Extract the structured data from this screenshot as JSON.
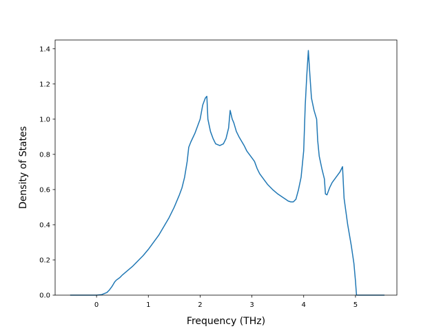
{
  "chart_data": {
    "type": "line",
    "title": "",
    "xlabel": "Frequency (THz)",
    "ylabel": "Density of States",
    "xlim": [
      -0.8,
      5.8
    ],
    "ylim": [
      0.0,
      1.45
    ],
    "xticks": [
      0,
      1,
      2,
      3,
      4,
      5
    ],
    "yticks": [
      0.0,
      0.2,
      0.4,
      0.6,
      0.8,
      1.0,
      1.2,
      1.4
    ],
    "xtick_labels": [
      "0",
      "1",
      "2",
      "3",
      "4",
      "5"
    ],
    "ytick_labels": [
      "0.0",
      "0.2",
      "0.4",
      "0.6",
      "0.8",
      "1.0",
      "1.2",
      "1.4"
    ],
    "grid": false,
    "series": [
      {
        "color": "#1f77b4",
        "points": [
          [
            -0.5,
            0.0
          ],
          [
            0.0,
            0.0
          ],
          [
            0.1,
            0.003
          ],
          [
            0.2,
            0.015
          ],
          [
            0.25,
            0.03
          ],
          [
            0.3,
            0.05
          ],
          [
            0.35,
            0.075
          ],
          [
            0.38,
            0.085
          ],
          [
            0.45,
            0.1
          ],
          [
            0.5,
            0.115
          ],
          [
            0.6,
            0.14
          ],
          [
            0.7,
            0.165
          ],
          [
            0.8,
            0.195
          ],
          [
            0.9,
            0.225
          ],
          [
            1.0,
            0.26
          ],
          [
            1.1,
            0.3
          ],
          [
            1.2,
            0.34
          ],
          [
            1.3,
            0.39
          ],
          [
            1.4,
            0.44
          ],
          [
            1.5,
            0.5
          ],
          [
            1.6,
            0.57
          ],
          [
            1.65,
            0.61
          ],
          [
            1.7,
            0.67
          ],
          [
            1.75,
            0.76
          ],
          [
            1.78,
            0.84
          ],
          [
            1.82,
            0.87
          ],
          [
            1.9,
            0.92
          ],
          [
            2.0,
            1.0
          ],
          [
            2.05,
            1.08
          ],
          [
            2.1,
            1.12
          ],
          [
            2.13,
            1.13
          ],
          [
            2.15,
            1.0
          ],
          [
            2.2,
            0.93
          ],
          [
            2.25,
            0.89
          ],
          [
            2.3,
            0.86
          ],
          [
            2.38,
            0.85
          ],
          [
            2.45,
            0.86
          ],
          [
            2.5,
            0.89
          ],
          [
            2.55,
            0.95
          ],
          [
            2.58,
            1.05
          ],
          [
            2.62,
            1.0
          ],
          [
            2.65,
            0.98
          ],
          [
            2.7,
            0.93
          ],
          [
            2.75,
            0.9
          ],
          [
            2.8,
            0.875
          ],
          [
            2.85,
            0.85
          ],
          [
            2.9,
            0.82
          ],
          [
            3.0,
            0.78
          ],
          [
            3.05,
            0.76
          ],
          [
            3.1,
            0.72
          ],
          [
            3.15,
            0.69
          ],
          [
            3.2,
            0.67
          ],
          [
            3.3,
            0.63
          ],
          [
            3.4,
            0.6
          ],
          [
            3.5,
            0.575
          ],
          [
            3.6,
            0.555
          ],
          [
            3.65,
            0.545
          ],
          [
            3.7,
            0.535
          ],
          [
            3.75,
            0.53
          ],
          [
            3.8,
            0.53
          ],
          [
            3.85,
            0.545
          ],
          [
            3.9,
            0.6
          ],
          [
            3.95,
            0.67
          ],
          [
            4.0,
            0.82
          ],
          [
            4.03,
            1.08
          ],
          [
            4.06,
            1.25
          ],
          [
            4.09,
            1.39
          ],
          [
            4.12,
            1.25
          ],
          [
            4.15,
            1.12
          ],
          [
            4.2,
            1.05
          ],
          [
            4.25,
            1.0
          ],
          [
            4.27,
            0.88
          ],
          [
            4.3,
            0.79
          ],
          [
            4.35,
            0.72
          ],
          [
            4.4,
            0.66
          ],
          [
            4.42,
            0.575
          ],
          [
            4.45,
            0.57
          ],
          [
            4.5,
            0.61
          ],
          [
            4.55,
            0.64
          ],
          [
            4.6,
            0.66
          ],
          [
            4.65,
            0.68
          ],
          [
            4.7,
            0.7
          ],
          [
            4.75,
            0.73
          ],
          [
            4.78,
            0.55
          ],
          [
            4.85,
            0.4
          ],
          [
            4.92,
            0.28
          ],
          [
            4.97,
            0.18
          ],
          [
            5.0,
            0.08
          ],
          [
            5.02,
            0.0
          ],
          [
            5.55,
            0.0
          ]
        ]
      }
    ]
  }
}
